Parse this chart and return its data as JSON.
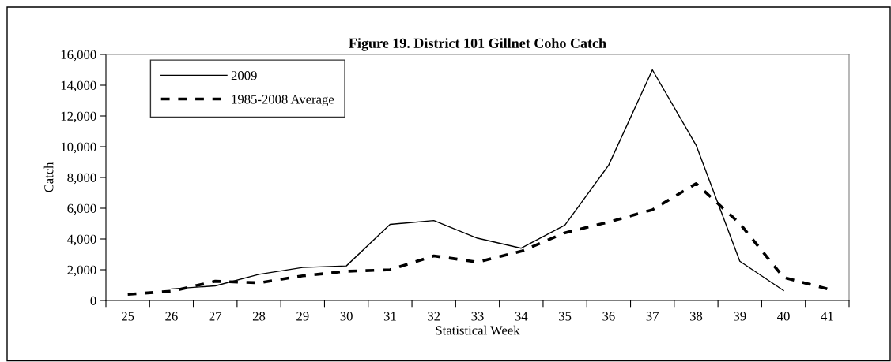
{
  "chart_data": {
    "type": "line",
    "title": "Figure 19. District 101 Gillnet Coho Catch",
    "xlabel": "Statistical Week",
    "ylabel": "Catch",
    "categories": [
      "25",
      "26",
      "27",
      "28",
      "29",
      "30",
      "31",
      "32",
      "33",
      "34",
      "35",
      "36",
      "37",
      "38",
      "39",
      "40",
      "41"
    ],
    "series": [
      {
        "name": "2009",
        "color": "#000000",
        "line_style": "solid",
        "values": [
          null,
          750,
          950,
          1700,
          2150,
          2250,
          4950,
          5200,
          4050,
          3400,
          4900,
          8800,
          15000,
          10100,
          2550,
          650,
          null
        ]
      },
      {
        "name": "1985-2008 Average",
        "color": "#000000",
        "line_style": "dashed",
        "values": [
          400,
          600,
          1250,
          1150,
          1600,
          1900,
          2000,
          2900,
          2500,
          3200,
          4400,
          5100,
          5900,
          7600,
          5000,
          1500,
          750
        ]
      }
    ],
    "ylim": [
      0,
      16000
    ],
    "yticks": [
      {
        "value": 0,
        "label": "0"
      },
      {
        "value": 2000,
        "label": "2,000"
      },
      {
        "value": 4000,
        "label": "4,000"
      },
      {
        "value": 6000,
        "label": "6,000"
      },
      {
        "value": 8000,
        "label": "8,000"
      },
      {
        "value": 10000,
        "label": "10,000"
      },
      {
        "value": 12000,
        "label": "12,000"
      },
      {
        "value": 14000,
        "label": "14,000"
      },
      {
        "value": 16000,
        "label": "16,000"
      }
    ],
    "grid": false,
    "legend": "top left",
    "marker": "none"
  }
}
